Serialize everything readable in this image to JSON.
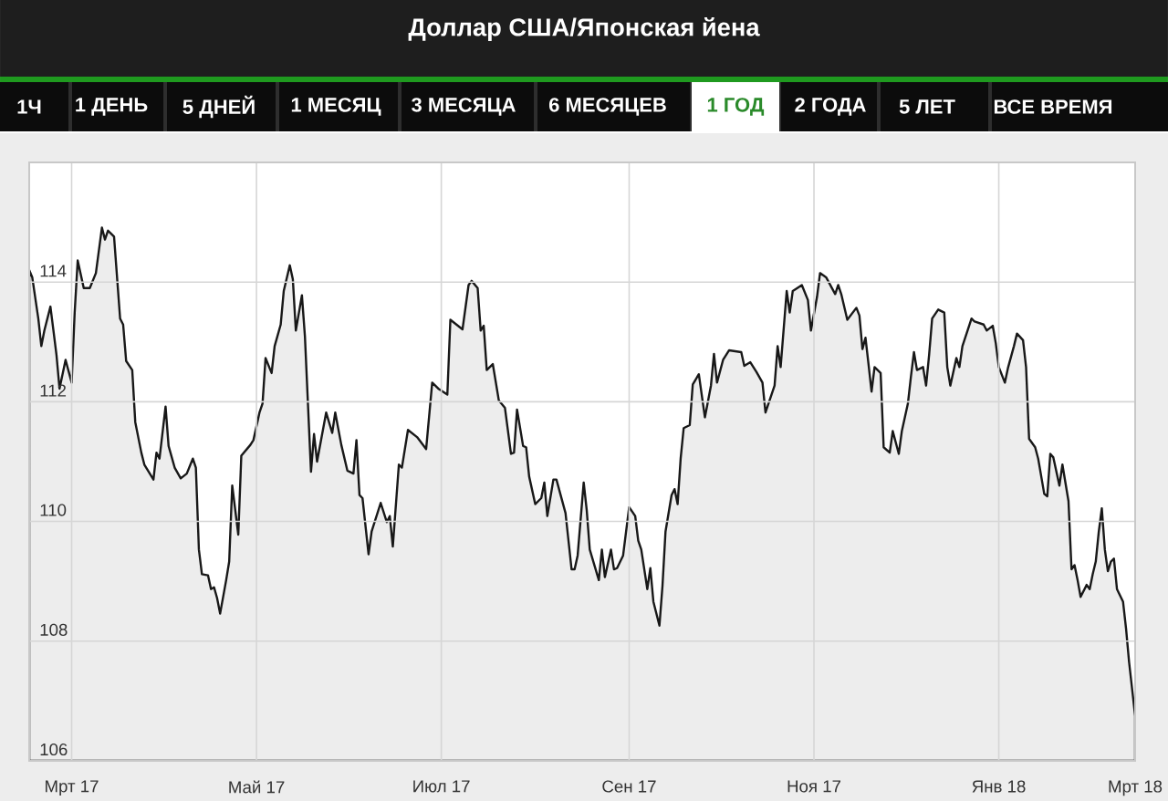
{
  "chart_data": {
    "type": "area",
    "title": "Доллар США/Японская йена",
    "subtitle": "1 ГОД",
    "annotations": [
      "1Ч",
      "1 ДЕНЬ",
      "5 ДНЕЙ",
      "1 МЕСЯЦ",
      "3 МЕСЯЦА",
      "6 МЕСЯЦЕВ",
      "2 ГОДА",
      "5 ЛЕТ",
      "ВСЕ ВРЕМЯ"
    ],
    "x": [
      "2017-02-15",
      "2017-02-16",
      "2017-02-18",
      "2017-02-19",
      "2017-02-20",
      "2017-02-22",
      "2017-02-23",
      "2017-02-24",
      "2017-02-25",
      "2017-02-27",
      "2017-03-01",
      "2017-03-02",
      "2017-03-03",
      "2017-03-05",
      "2017-03-07",
      "2017-03-09",
      "2017-03-11",
      "2017-03-12",
      "2017-03-13",
      "2017-03-15",
      "2017-03-17",
      "2017-03-18",
      "2017-03-19",
      "2017-03-21",
      "2017-03-22",
      "2017-03-24",
      "2017-03-25",
      "2017-03-28",
      "2017-03-29",
      "2017-03-30",
      "2017-04-01",
      "2017-04-02",
      "2017-04-04",
      "2017-04-06",
      "2017-04-08",
      "2017-04-10",
      "2017-04-11",
      "2017-04-12",
      "2017-04-13",
      "2017-04-15",
      "2017-04-16",
      "2017-04-17",
      "2017-04-18",
      "2017-04-19",
      "2017-04-21",
      "2017-04-22",
      "2017-04-23",
      "2017-04-25",
      "2017-04-26",
      "2017-04-29",
      "2017-04-30",
      "2017-05-02",
      "2017-05-03",
      "2017-05-04",
      "2017-05-06",
      "2017-05-07",
      "2017-05-09",
      "2017-05-10",
      "2017-05-12",
      "2017-05-13",
      "2017-05-14",
      "2017-05-16",
      "2017-05-17",
      "2017-05-19",
      "2017-05-20",
      "2017-05-21",
      "2017-05-24",
      "2017-05-26",
      "2017-05-27",
      "2017-05-29",
      "2017-05-31",
      "2017-06-02",
      "2017-06-03",
      "2017-06-04",
      "2017-06-05",
      "2017-06-07",
      "2017-06-08",
      "2017-06-11",
      "2017-06-13",
      "2017-06-14",
      "2017-06-15",
      "2017-06-17",
      "2017-06-18",
      "2017-06-20",
      "2017-06-23",
      "2017-06-26",
      "2017-06-28",
      "2017-06-30",
      "2017-07-03",
      "2017-07-04",
      "2017-07-08",
      "2017-07-10",
      "2017-07-11",
      "2017-07-13",
      "2017-07-14",
      "2017-07-15",
      "2017-07-16",
      "2017-07-18",
      "2017-07-20",
      "2017-07-22",
      "2017-07-24",
      "2017-07-25",
      "2017-07-26",
      "2017-07-28",
      "2017-07-29",
      "2017-07-30",
      "2017-08-01",
      "2017-08-03",
      "2017-08-04",
      "2017-08-05",
      "2017-08-07",
      "2017-08-08",
      "2017-08-11",
      "2017-08-13",
      "2017-08-14",
      "2017-08-15",
      "2017-08-17",
      "2017-08-18",
      "2017-08-19",
      "2017-08-22",
      "2017-08-23",
      "2017-08-24",
      "2017-08-26",
      "2017-08-27",
      "2017-08-28",
      "2017-08-30",
      "2017-09-01",
      "2017-09-03",
      "2017-09-04",
      "2017-09-05",
      "2017-09-07",
      "2017-09-08",
      "2017-09-09",
      "2017-09-11",
      "2017-09-12",
      "2017-09-13",
      "2017-09-15",
      "2017-09-16",
      "2017-09-17",
      "2017-09-18",
      "2017-09-19",
      "2017-09-21",
      "2017-09-22",
      "2017-09-24",
      "2017-09-26",
      "2017-09-28",
      "2017-09-29",
      "2017-09-30",
      "2017-10-02",
      "2017-10-04",
      "2017-10-08",
      "2017-10-09",
      "2017-10-11",
      "2017-10-13",
      "2017-10-15",
      "2017-10-16",
      "2017-10-19",
      "2017-10-20",
      "2017-10-21",
      "2017-10-23",
      "2017-10-24",
      "2017-10-25",
      "2017-10-28",
      "2017-10-30",
      "2017-10-31",
      "2017-11-02",
      "2017-11-03",
      "2017-11-05",
      "2017-11-08",
      "2017-11-09",
      "2017-11-10",
      "2017-11-12",
      "2017-11-15",
      "2017-11-16",
      "2017-11-17",
      "2017-11-18",
      "2017-11-19",
      "2017-11-20",
      "2017-11-21",
      "2017-11-23",
      "2017-11-24",
      "2017-11-26",
      "2017-11-27",
      "2017-11-29",
      "2017-11-30",
      "2017-12-02",
      "2017-12-03",
      "2017-12-04",
      "2017-12-05",
      "2017-12-07",
      "2017-12-08",
      "2017-12-09",
      "2017-12-10",
      "2017-12-12",
      "2017-12-14",
      "2017-12-15",
      "2017-12-16",
      "2017-12-18",
      "2017-12-19",
      "2017-12-20",
      "2017-12-23",
      "2017-12-24",
      "2017-12-27",
      "2017-12-28",
      "2017-12-30",
      "2017-12-31",
      "2018-01-01",
      "2018-01-03",
      "2018-01-04",
      "2018-01-06",
      "2018-01-07",
      "2018-01-09",
      "2018-01-10",
      "2018-01-11",
      "2018-01-13",
      "2018-01-14",
      "2018-01-16",
      "2018-01-17",
      "2018-01-18",
      "2018-01-19",
      "2018-01-21",
      "2018-01-22",
      "2018-01-24",
      "2018-01-25",
      "2018-01-26",
      "2018-01-27",
      "2018-01-28",
      "2018-01-30",
      "2018-01-31",
      "2018-02-01",
      "2018-02-02",
      "2018-02-03",
      "2018-02-04",
      "2018-02-05",
      "2018-02-06",
      "2018-02-07",
      "2018-02-08",
      "2018-02-09",
      "2018-02-11",
      "2018-02-12",
      "2018-02-13",
      "2018-02-15"
    ],
    "series": [
      {
        "color": "#ededed",
        "values": [
          114.2,
          114.08,
          113.39,
          112.93,
          113.19,
          113.59,
          113.19,
          112.78,
          112.22,
          112.7,
          112.32,
          113.49,
          114.36,
          113.9,
          113.9,
          114.15,
          114.91,
          114.71,
          114.86,
          114.76,
          113.39,
          113.29,
          112.68,
          112.53,
          111.66,
          111.15,
          110.95,
          110.7,
          111.15,
          111.05,
          111.92,
          111.26,
          110.9,
          110.72,
          110.8,
          111.05,
          110.9,
          109.53,
          109.12,
          109.1,
          108.87,
          108.9,
          108.72,
          108.46,
          109.02,
          109.33,
          110.6,
          109.78,
          111.1,
          111.28,
          111.36,
          111.82,
          111.97,
          112.73,
          112.48,
          112.93,
          113.29,
          113.85,
          114.28,
          114.05,
          113.19,
          113.78,
          113.09,
          110.83,
          111.46,
          111.0,
          111.82,
          111.48,
          111.82,
          111.28,
          110.85,
          110.8,
          111.36,
          110.44,
          110.39,
          109.45,
          109.83,
          110.31,
          109.99,
          110.09,
          109.58,
          110.95,
          110.9,
          111.53,
          111.41,
          111.21,
          112.32,
          112.22,
          112.12,
          113.37,
          113.21,
          113.95,
          114.02,
          113.9,
          113.19,
          113.27,
          112.53,
          112.63,
          112.02,
          111.9,
          111.13,
          111.15,
          111.87,
          111.26,
          111.24,
          110.75,
          110.29,
          110.39,
          110.65,
          110.09,
          110.7,
          110.7,
          110.14,
          109.2,
          109.2,
          109.43,
          110.65,
          110.19,
          109.53,
          109.02,
          109.53,
          109.07,
          109.53,
          109.2,
          109.22,
          109.43,
          110.24,
          110.09,
          109.68,
          109.53,
          108.87,
          109.22,
          108.66,
          108.26,
          108.92,
          109.83,
          110.44,
          110.54,
          110.29,
          111.05,
          111.56,
          111.61,
          112.29,
          112.46,
          111.74,
          112.27,
          112.8,
          112.32,
          112.7,
          112.86,
          112.83,
          112.6,
          112.66,
          112.5,
          112.32,
          111.82,
          112.27,
          112.93,
          112.58,
          113.85,
          113.49,
          113.85,
          113.95,
          113.7,
          113.19,
          113.75,
          114.15,
          114.08,
          113.8,
          113.95,
          113.8,
          113.37,
          113.57,
          113.44,
          112.88,
          113.07,
          112.63,
          112.17,
          112.58,
          112.48,
          111.24,
          111.15,
          111.51,
          111.13,
          111.51,
          111.97,
          112.42,
          112.83,
          112.53,
          112.58,
          112.27,
          112.78,
          113.39,
          113.54,
          113.49,
          112.58,
          112.27,
          112.73,
          112.58,
          112.93,
          113.39,
          113.34,
          113.29,
          113.19,
          113.27,
          112.98,
          112.58,
          112.32,
          112.56,
          112.93,
          113.14,
          113.03,
          112.58,
          111.38,
          111.24,
          111.05,
          110.46,
          110.42,
          111.13,
          111.07,
          110.6,
          110.95,
          110.34,
          109.2,
          109.27,
          109.02,
          108.74,
          108.94,
          108.87,
          109.12,
          109.33,
          109.83,
          110.22,
          109.53,
          109.17,
          109.33,
          109.38,
          108.87,
          108.66,
          108.21,
          107.65,
          106.75
        ]
      }
    ],
    "xlim": [
      "2017-02-15",
      "2018-02-15"
    ],
    "ylim": [
      106,
      116
    ],
    "xticks": [
      {
        "value": "2017-03-01",
        "label": "Мрт 17"
      },
      {
        "value": "2017-05-01",
        "label": "Май 17"
      },
      {
        "value": "2017-07-01",
        "label": "Июл 17"
      },
      {
        "value": "2017-09-01",
        "label": "Сен 17"
      },
      {
        "value": "2017-11-01",
        "label": "Ноя 17"
      },
      {
        "value": "2018-01-01",
        "label": "Янв 18"
      },
      {
        "value": "2018-02-15",
        "label": "Мрт 18"
      }
    ],
    "yticks": [
      106,
      108,
      110,
      112,
      114
    ],
    "grid": true
  }
}
